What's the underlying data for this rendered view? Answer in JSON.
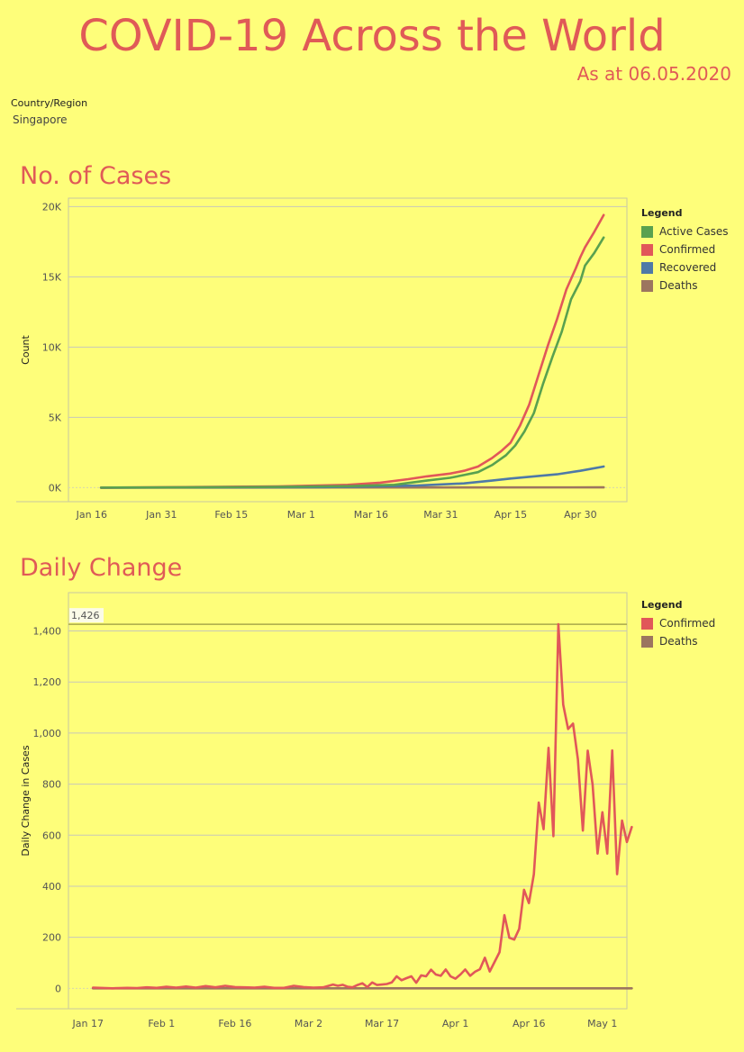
{
  "header": {
    "title": "COVID-19 Across the World",
    "subtitle": "As at 06.05.2020"
  },
  "filter": {
    "label": "Country/Region",
    "value": "Singapore"
  },
  "legend_title": "Legend",
  "chart_data": [
    {
      "type": "line",
      "title": "No. of Cases",
      "ylabel": "Count",
      "xlabel": "",
      "ylim": [
        -1000,
        20600
      ],
      "y_ticks": [
        0,
        5000,
        10000,
        15000,
        20000
      ],
      "y_tick_labels": [
        "0K",
        "5K",
        "10K",
        "15K",
        "20K"
      ],
      "x_ticks": [
        {
          "day": 0,
          "label": "Jan 16"
        },
        {
          "day": 15,
          "label": "Jan 31"
        },
        {
          "day": 30,
          "label": "Feb 15"
        },
        {
          "day": 45,
          "label": "Mar 1"
        },
        {
          "day": 60,
          "label": "Mar 16"
        },
        {
          "day": 75,
          "label": "Mar 31"
        },
        {
          "day": 90,
          "label": "Apr 15"
        },
        {
          "day": 105,
          "label": "Apr 30"
        }
      ],
      "x_range": [
        -5,
        115
      ],
      "grid": true,
      "legend_placement": "right",
      "series": [
        {
          "name": "Active Cases",
          "color": "#59a14f",
          "points": [
            [
              2,
              0
            ],
            [
              20,
              20
            ],
            [
              40,
              50
            ],
            [
              55,
              100
            ],
            [
              65,
              200
            ],
            [
              72,
              500
            ],
            [
              77,
              700
            ],
            [
              80,
              900
            ],
            [
              83,
              1100
            ],
            [
              86,
              1600
            ],
            [
              89,
              2300
            ],
            [
              91,
              3000
            ],
            [
              93,
              4000
            ],
            [
              95,
              5300
            ],
            [
              97,
              7400
            ],
            [
              99,
              9300
            ],
            [
              101,
              11100
            ],
            [
              103,
              13400
            ],
            [
              105,
              14700
            ],
            [
              106,
              15800
            ],
            [
              108,
              16700
            ],
            [
              110,
              17800
            ]
          ]
        },
        {
          "name": "Confirmed",
          "color": "#e15759",
          "points": [
            [
              2,
              0
            ],
            [
              20,
              40
            ],
            [
              40,
              90
            ],
            [
              55,
              200
            ],
            [
              62,
              350
            ],
            [
              68,
              600
            ],
            [
              72,
              800
            ],
            [
              77,
              1000
            ],
            [
              80,
              1200
            ],
            [
              83,
              1500
            ],
            [
              86,
              2100
            ],
            [
              88,
              2600
            ],
            [
              90,
              3200
            ],
            [
              92,
              4400
            ],
            [
              94,
              5900
            ],
            [
              96,
              8000
            ],
            [
              98,
              10100
            ],
            [
              100,
              12000
            ],
            [
              102,
              14100
            ],
            [
              104,
              15600
            ],
            [
              105,
              16400
            ],
            [
              106,
              17100
            ],
            [
              108,
              18200
            ],
            [
              110,
              19400
            ]
          ]
        },
        {
          "name": "Recovered",
          "color": "#4e79a7",
          "points": [
            [
              2,
              0
            ],
            [
              30,
              20
            ],
            [
              50,
              40
            ],
            [
              60,
              80
            ],
            [
              70,
              150
            ],
            [
              80,
              300
            ],
            [
              86,
              500
            ],
            [
              90,
              650
            ],
            [
              95,
              800
            ],
            [
              100,
              950
            ],
            [
              105,
              1200
            ],
            [
              110,
              1500
            ]
          ]
        },
        {
          "name": "Deaths",
          "color": "#9c755f",
          "points": [
            [
              2,
              0
            ],
            [
              110,
              20
            ]
          ]
        }
      ]
    },
    {
      "type": "line",
      "title": "Daily Change",
      "ylabel": "Daily Change in Cases",
      "xlabel": "",
      "ylim": [
        -80,
        1550
      ],
      "y_ticks": [
        0,
        200,
        400,
        600,
        800,
        1000,
        1200,
        1400
      ],
      "y_tick_labels": [
        "0",
        "200",
        "400",
        "600",
        "800",
        "1,000",
        "1,200",
        "1,400"
      ],
      "x_ticks": [
        {
          "day": 0,
          "label": "Jan 17"
        },
        {
          "day": 15,
          "label": "Feb 1"
        },
        {
          "day": 30,
          "label": "Feb 16"
        },
        {
          "day": 45,
          "label": "Mar 2"
        },
        {
          "day": 60,
          "label": "Mar 17"
        },
        {
          "day": 75,
          "label": "Apr 1"
        },
        {
          "day": 90,
          "label": "Apr 16"
        },
        {
          "day": 105,
          "label": "May 1"
        }
      ],
      "x_range": [
        -4,
        110
      ],
      "grid": true,
      "legend_placement": "right",
      "reference_line": {
        "value": 1426,
        "label": "1,426",
        "color": "#a8a84a"
      },
      "series": [
        {
          "name": "Confirmed",
          "color": "#e15759",
          "points": [
            [
              1,
              3
            ],
            [
              5,
              0
            ],
            [
              8,
              2
            ],
            [
              10,
              1
            ],
            [
              12,
              4
            ],
            [
              14,
              2
            ],
            [
              16,
              6
            ],
            [
              18,
              3
            ],
            [
              20,
              7
            ],
            [
              22,
              3
            ],
            [
              24,
              9
            ],
            [
              26,
              4
            ],
            [
              28,
              10
            ],
            [
              30,
              5
            ],
            [
              32,
              4
            ],
            [
              34,
              3
            ],
            [
              36,
              6
            ],
            [
              38,
              2
            ],
            [
              40,
              2
            ],
            [
              42,
              10
            ],
            [
              44,
              5
            ],
            [
              46,
              3
            ],
            [
              48,
              4
            ],
            [
              50,
              15
            ],
            [
              51,
              10
            ],
            [
              52,
              14
            ],
            [
              53,
              6
            ],
            [
              54,
              4
            ],
            [
              55,
              13
            ],
            [
              56,
              20
            ],
            [
              57,
              5
            ],
            [
              58,
              23
            ],
            [
              59,
              13
            ],
            [
              60,
              15
            ],
            [
              61,
              17
            ],
            [
              62,
              23
            ],
            [
              63,
              47
            ],
            [
              64,
              32
            ],
            [
              65,
              40
            ],
            [
              66,
              47
            ],
            [
              67,
              22
            ],
            [
              68,
              51
            ],
            [
              69,
              47
            ],
            [
              70,
              73
            ],
            [
              71,
              54
            ],
            [
              72,
              49
            ],
            [
              73,
              74
            ],
            [
              74,
              47
            ],
            [
              75,
              38
            ],
            [
              76,
              54
            ],
            [
              77,
              74
            ],
            [
              78,
              49
            ],
            [
              79,
              65
            ],
            [
              80,
              75
            ],
            [
              81,
              120
            ],
            [
              82,
              66
            ],
            [
              84,
              142
            ],
            [
              85,
              287
            ],
            [
              86,
              198
            ],
            [
              87,
              191
            ],
            [
              88,
              233
            ],
            [
              89,
              386
            ],
            [
              90,
              334
            ],
            [
              91,
              447
            ],
            [
              92,
              728
            ],
            [
              93,
              623
            ],
            [
              94,
              942
            ],
            [
              95,
              596
            ],
            [
              96,
              1426
            ],
            [
              97,
              1111
            ],
            [
              98,
              1016
            ],
            [
              99,
              1037
            ],
            [
              100,
              897
            ],
            [
              101,
              618
            ],
            [
              102,
              931
            ],
            [
              103,
              799
            ],
            [
              104,
              528
            ],
            [
              105,
              690
            ],
            [
              106,
              528
            ],
            [
              107,
              932
            ],
            [
              108,
              447
            ],
            [
              109,
              657
            ],
            [
              110,
              573
            ],
            [
              111,
              632
            ]
          ]
        },
        {
          "name": "Deaths",
          "color": "#9c755f",
          "points": [
            [
              1,
              0
            ],
            [
              111,
              0
            ]
          ]
        }
      ]
    }
  ]
}
